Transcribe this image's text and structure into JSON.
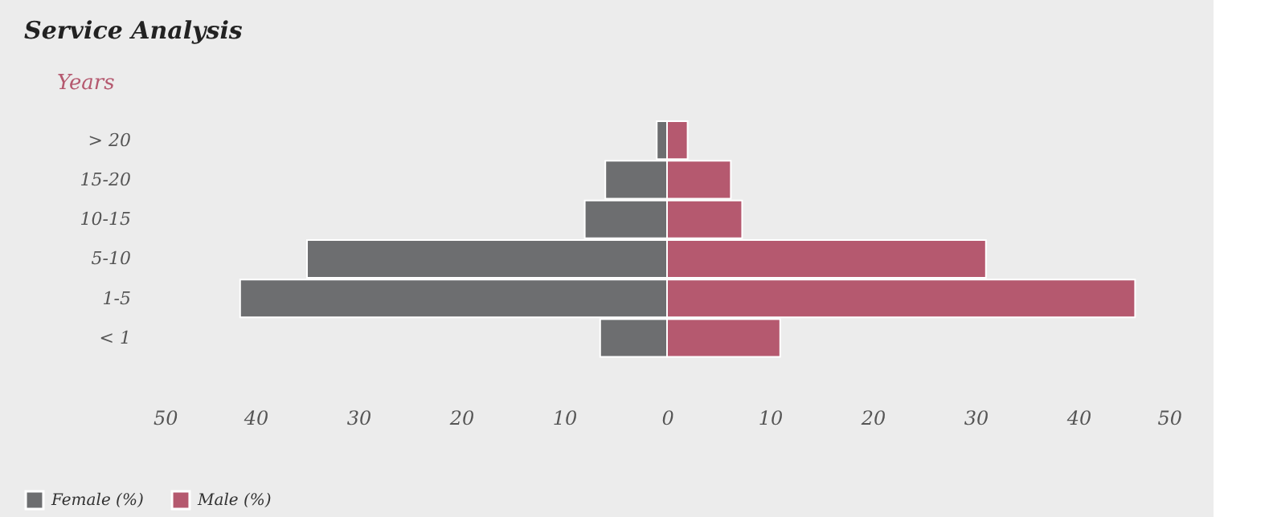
{
  "chart_data": {
    "type": "bar",
    "orientation": "horizontal",
    "title": "Service Analysis",
    "ylabel": "Years",
    "categories": [
      "> 20",
      "15-20",
      "10-15",
      "5-10",
      "1-5",
      "< 1"
    ],
    "series": [
      {
        "name": "Female (%)",
        "color": "#6d6e70",
        "values": [
          -1,
          -6,
          -8,
          -35,
          -41.5,
          -6.5
        ]
      },
      {
        "name": "Male (%)",
        "color": "#b5596f",
        "values": [
          2,
          6.2,
          7.3,
          31,
          45.5,
          11
        ]
      }
    ],
    "xlim": [
      -50,
      50
    ],
    "xticks": [
      {
        "value": -50,
        "label": "50"
      },
      {
        "value": -40,
        "label": "40"
      },
      {
        "value": -30,
        "label": "30"
      },
      {
        "value": -20,
        "label": "20"
      },
      {
        "value": -10,
        "label": "10"
      },
      0,
      10,
      20,
      30,
      40,
      50
    ],
    "stacked": true,
    "grid": false,
    "legend": "bottom left"
  }
}
